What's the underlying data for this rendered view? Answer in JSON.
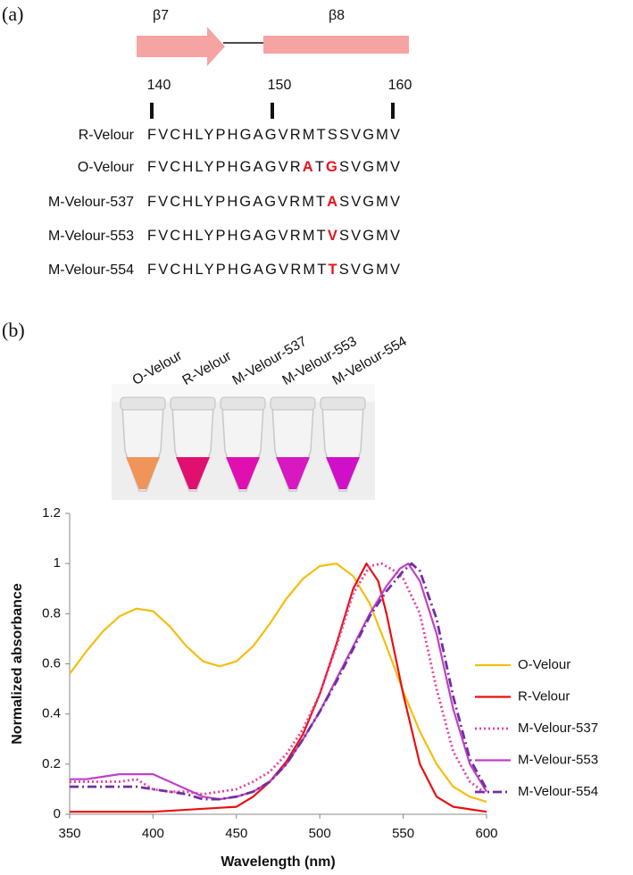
{
  "panel_labels": [
    "(a)",
    "(b)"
  ],
  "structure": {
    "strands": [
      "β7",
      "β8"
    ],
    "ruler": [
      140,
      150,
      160
    ]
  },
  "alignment": [
    {
      "name": "R-Velour",
      "segments": [
        {
          "text": "FVCHLYPHGAGVRMTSSVGMV",
          "mutated": false
        }
      ]
    },
    {
      "name": "O-Velour",
      "segments": [
        {
          "text": "FVCHLYPHGAGVR",
          "mutated": false
        },
        {
          "text": "A",
          "mutated": true
        },
        {
          "text": "T",
          "mutated": false
        },
        {
          "text": "G",
          "mutated": true
        },
        {
          "text": "SVGMV",
          "mutated": false
        }
      ]
    },
    {
      "name": "M-Velour-537",
      "segments": [
        {
          "text": "FVCHLYPHGAGVRMT",
          "mutated": false
        },
        {
          "text": "A",
          "mutated": true
        },
        {
          "text": "SVGMV",
          "mutated": false
        }
      ]
    },
    {
      "name": "M-Velour-553",
      "segments": [
        {
          "text": "FVCHLYPHGAGVRMT",
          "mutated": false
        },
        {
          "text": "V",
          "mutated": true
        },
        {
          "text": "SVGMV",
          "mutated": false
        }
      ]
    },
    {
      "name": "M-Velour-554",
      "segments": [
        {
          "text": "FVCHLYPHGAGVRMT",
          "mutated": false
        },
        {
          "text": "T",
          "mutated": true
        },
        {
          "text": "SVGMV",
          "mutated": false
        }
      ]
    }
  ],
  "tubes": [
    {
      "label": "O-Velour",
      "color": "#f0955a"
    },
    {
      "label": "R-Velour",
      "color": "#e0106e"
    },
    {
      "label": "M-Velour-537",
      "color": "#e010b0"
    },
    {
      "label": "M-Velour-553",
      "color": "#d818c0"
    },
    {
      "label": "M-Velour-554",
      "color": "#d010c8"
    }
  ],
  "chart_data": {
    "type": "line",
    "xlabel": "Wavelength (nm)",
    "ylabel": "Normalized  absorbance",
    "xlim": [
      350,
      600
    ],
    "xticks": [
      350,
      400,
      450,
      500,
      550,
      600
    ],
    "ylim": [
      0,
      1.2
    ],
    "yticks": [
      0,
      0.2,
      0.4,
      0.6,
      0.8,
      1,
      1.2
    ],
    "series": [
      {
        "name": "O-Velour",
        "color": "#f5be10",
        "dash": "solid",
        "x": [
          350,
          360,
          370,
          380,
          390,
          400,
          410,
          420,
          430,
          440,
          450,
          460,
          470,
          480,
          490,
          500,
          510,
          520,
          530,
          540,
          550,
          560,
          570,
          580,
          590,
          600
        ],
        "values": [
          0.56,
          0.65,
          0.73,
          0.79,
          0.82,
          0.81,
          0.75,
          0.67,
          0.61,
          0.59,
          0.61,
          0.67,
          0.76,
          0.86,
          0.94,
          0.99,
          1.0,
          0.95,
          0.84,
          0.67,
          0.49,
          0.33,
          0.2,
          0.11,
          0.07,
          0.05
        ]
      },
      {
        "name": "R-Velour",
        "color": "#e81010",
        "dash": "solid",
        "x": [
          350,
          400,
          450,
          460,
          470,
          480,
          490,
          500,
          510,
          520,
          528,
          535,
          540,
          550,
          560,
          570,
          580,
          590,
          600
        ],
        "values": [
          0.01,
          0.01,
          0.03,
          0.07,
          0.13,
          0.21,
          0.32,
          0.48,
          0.68,
          0.9,
          1.0,
          0.93,
          0.8,
          0.48,
          0.2,
          0.07,
          0.03,
          0.02,
          0.01
        ]
      },
      {
        "name": "M-Velour-537",
        "color": "#e8409a",
        "dash": "dotted",
        "x": [
          350,
          360,
          370,
          380,
          390,
          400,
          410,
          420,
          430,
          440,
          450,
          460,
          470,
          480,
          490,
          500,
          510,
          520,
          530,
          537,
          545,
          550,
          560,
          570,
          580,
          590,
          600
        ],
        "values": [
          0.13,
          0.13,
          0.13,
          0.13,
          0.14,
          0.1,
          0.09,
          0.09,
          0.08,
          0.09,
          0.1,
          0.13,
          0.17,
          0.24,
          0.34,
          0.48,
          0.67,
          0.88,
          0.99,
          1.0,
          0.97,
          0.94,
          0.8,
          0.5,
          0.25,
          0.13,
          0.08
        ]
      },
      {
        "name": "M-Velour-553",
        "color": "#c040c8",
        "dash": "solid",
        "x": [
          350,
          360,
          370,
          380,
          390,
          400,
          410,
          420,
          430,
          440,
          450,
          460,
          470,
          480,
          490,
          500,
          510,
          520,
          530,
          540,
          548,
          553,
          560,
          570,
          580,
          590,
          600
        ],
        "values": [
          0.14,
          0.14,
          0.15,
          0.16,
          0.16,
          0.16,
          0.13,
          0.1,
          0.07,
          0.06,
          0.07,
          0.09,
          0.13,
          0.2,
          0.3,
          0.41,
          0.54,
          0.67,
          0.8,
          0.91,
          0.98,
          1.0,
          0.93,
          0.72,
          0.42,
          0.2,
          0.09
        ]
      },
      {
        "name": "M-Velour-554",
        "color": "#7030a0",
        "dash": "dashdot",
        "x": [
          350,
          360,
          370,
          380,
          390,
          400,
          410,
          420,
          430,
          440,
          450,
          460,
          470,
          480,
          490,
          500,
          510,
          520,
          530,
          540,
          550,
          555,
          560,
          570,
          580,
          590,
          600
        ],
        "values": [
          0.11,
          0.11,
          0.11,
          0.11,
          0.11,
          0.1,
          0.09,
          0.08,
          0.06,
          0.06,
          0.07,
          0.09,
          0.13,
          0.2,
          0.3,
          0.41,
          0.53,
          0.66,
          0.79,
          0.89,
          0.97,
          1.0,
          0.97,
          0.78,
          0.47,
          0.22,
          0.1
        ]
      }
    ]
  }
}
